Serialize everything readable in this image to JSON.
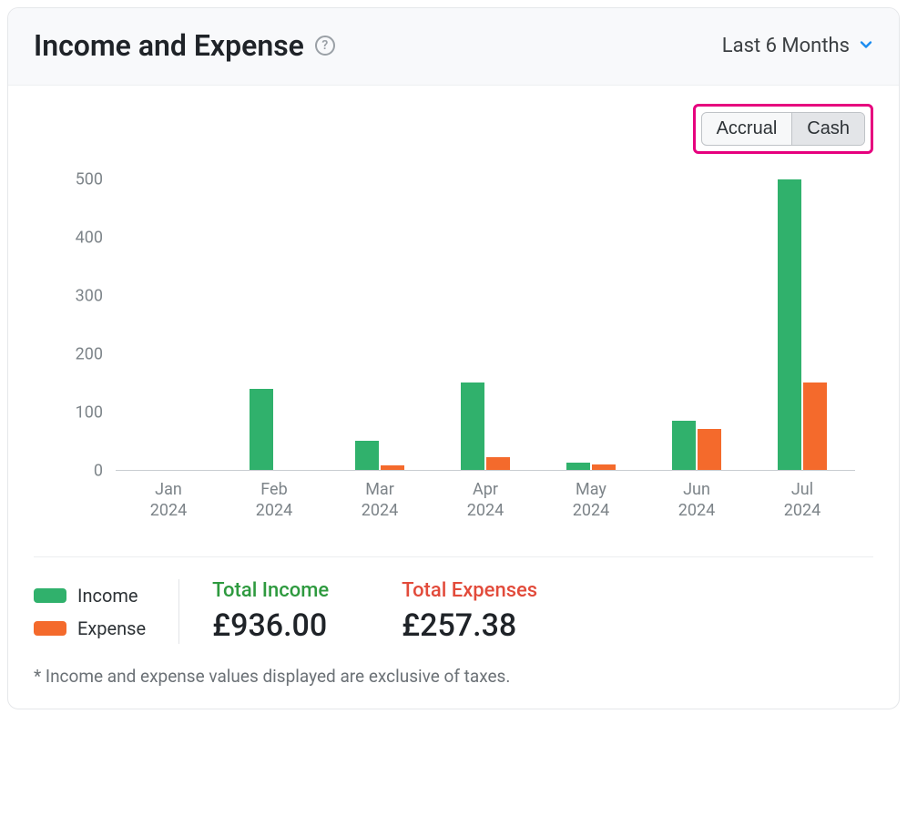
{
  "header": {
    "title": "Income and Expense",
    "help_glyph": "?",
    "range_label": "Last 6 Months"
  },
  "toggle": {
    "highlight_color": "#e6007e",
    "options": [
      {
        "label": "Accrual",
        "selected": false
      },
      {
        "label": "Cash",
        "selected": true
      }
    ]
  },
  "chart": {
    "type": "bar",
    "ylim": [
      0,
      500
    ],
    "ytick_step": 100,
    "yticks": [
      0,
      100,
      200,
      300,
      400,
      500
    ],
    "axis_label_color": "#7d8489",
    "axis_line_color": "#c9cdd1",
    "background_color": "#ffffff",
    "bar_width_pct": 22,
    "bar_gap_pct": 2,
    "categories": [
      {
        "month": "Jan",
        "year": "2024"
      },
      {
        "month": "Feb",
        "year": "2024"
      },
      {
        "month": "Mar",
        "year": "2024"
      },
      {
        "month": "Apr",
        "year": "2024"
      },
      {
        "month": "May",
        "year": "2024"
      },
      {
        "month": "Jun",
        "year": "2024"
      },
      {
        "month": "Jul",
        "year": "2024"
      }
    ],
    "series": [
      {
        "name": "Income",
        "color": "#30b16c",
        "values": [
          0,
          140,
          50,
          150,
          12,
          85,
          500
        ]
      },
      {
        "name": "Expense",
        "color": "#f46a2c",
        "values": [
          0,
          0,
          8,
          22,
          10,
          70,
          150
        ]
      }
    ]
  },
  "legend": {
    "items": [
      {
        "label": "Income",
        "color": "#30b16c"
      },
      {
        "label": "Expense",
        "color": "#f46a2c"
      }
    ]
  },
  "totals": {
    "income": {
      "label": "Total Income",
      "label_color": "#2e9a3f",
      "value": "£936.00"
    },
    "expenses": {
      "label": "Total Expenses",
      "label_color": "#e24b3b",
      "value": "£257.38"
    }
  },
  "footnote": "* Income and expense values displayed are exclusive of taxes."
}
